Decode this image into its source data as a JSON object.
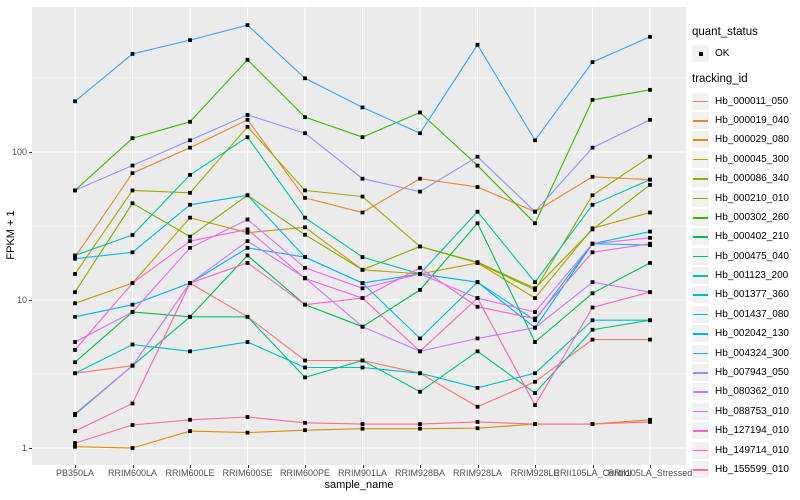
{
  "chart_data": {
    "type": "line",
    "title": "",
    "xlabel": "sample_name",
    "ylabel": "FPKM + 1",
    "y_scale": "log10",
    "grid": "on",
    "legend_position": "right",
    "y_ticks": [
      1,
      10,
      100
    ],
    "y_tick_labels": [
      "1",
      "10",
      "100"
    ],
    "y_minor_ticks": [
      3.162,
      31.62,
      316.2
    ],
    "ylim": [
      0.77,
      960
    ],
    "categories": [
      "PB350LA",
      "RRIM600LA",
      "RRIM600LE",
      "RRIM600SE",
      "RRIM600PE",
      "RRIM901LA",
      "RRIM928BA",
      "RRIM928LA",
      "RRIM928LE",
      "RRII105LA_Control",
      "RRII105LA_Stressed"
    ],
    "series": [
      {
        "name": "Hb_000011_050",
        "color": "#F8766D",
        "values": [
          3.2,
          3.6,
          13,
          7.7,
          3.9,
          3.9,
          3.2,
          1.9,
          2.8,
          5.4,
          5.4
        ]
      },
      {
        "name": "Hb_000019_040",
        "color": "#EA8331",
        "values": [
          19.5,
          72,
          107,
          165,
          49,
          39,
          66,
          58,
          39.5,
          68,
          65
        ]
      },
      {
        "name": "Hb_000029_080",
        "color": "#D89000",
        "values": [
          1.02,
          1.0,
          1.3,
          1.27,
          1.32,
          1.35,
          1.35,
          1.36,
          1.45,
          1.45,
          1.55
        ]
      },
      {
        "name": "Hb_000045_300",
        "color": "#C09B00",
        "values": [
          9.5,
          13,
          36,
          28.5,
          31,
          16,
          15,
          17.8,
          10.3,
          30.5,
          39
        ]
      },
      {
        "name": "Hb_000086_340",
        "color": "#A3A500",
        "values": [
          15,
          55,
          53,
          148,
          55,
          50,
          23,
          17.8,
          11.7,
          51,
          93
        ]
      },
      {
        "name": "Hb_000210_010",
        "color": "#7CAE00",
        "values": [
          11.3,
          45,
          26.8,
          51,
          27.6,
          16,
          23,
          18,
          12,
          30,
          60
        ]
      },
      {
        "name": "Hb_000302_260",
        "color": "#39B600",
        "values": [
          55,
          124,
          160,
          420,
          172,
          126,
          185,
          81,
          33,
          225,
          263
        ]
      },
      {
        "name": "Hb_000402_210",
        "color": "#00BB4E",
        "values": [
          3.8,
          8.3,
          7.7,
          20,
          9.3,
          6.6,
          11.7,
          33,
          5.2,
          11.1,
          17.8
        ]
      },
      {
        "name": "Hb_000475_040",
        "color": "#00BF7D",
        "values": [
          1.7,
          3.6,
          7.7,
          7.7,
          3.0,
          3.9,
          2.4,
          4.5,
          2.35,
          6.3,
          7.3
        ]
      },
      {
        "name": "Hb_001123_200",
        "color": "#00C1A3",
        "values": [
          20,
          27.5,
          70,
          126,
          36,
          19.5,
          15,
          39.5,
          13.2,
          44,
          65
        ]
      },
      {
        "name": "Hb_001377_360",
        "color": "#00BFC4",
        "values": [
          3.2,
          5.0,
          4.5,
          5.2,
          3.5,
          3.5,
          3.2,
          2.55,
          3.2,
          7.3,
          7.3
        ]
      },
      {
        "name": "Hb_001437_080",
        "color": "#00BAE0",
        "values": [
          19,
          21,
          44,
          51,
          19.5,
          13,
          5.5,
          13.2,
          7.3,
          24,
          29
        ]
      },
      {
        "name": "Hb_002042_130",
        "color": "#00B0F6",
        "values": [
          7.7,
          9.3,
          13,
          22.5,
          19.5,
          13,
          15,
          13.2,
          6.5,
          24,
          23.5
        ]
      },
      {
        "name": "Hb_004324_300",
        "color": "#35A2FF",
        "values": [
          220,
          460,
          570,
          720,
          315,
          200,
          134,
          530,
          120,
          405,
          600
        ]
      },
      {
        "name": "Hb_007943_050",
        "color": "#9590FF",
        "values": [
          55,
          81,
          120,
          178,
          134,
          66,
          54,
          93,
          39.5,
          107,
          165
        ]
      },
      {
        "name": "Hb_080362_010",
        "color": "#C77CFF",
        "values": [
          1.67,
          3.6,
          13,
          25,
          14.1,
          6.6,
          4.5,
          5.5,
          6.5,
          13.2,
          11.3
        ]
      },
      {
        "name": "Hb_088753_010",
        "color": "#E76BF3",
        "values": [
          5.2,
          8.3,
          22.5,
          35,
          16.5,
          12,
          15,
          10.3,
          8.3,
          24,
          26.3
        ]
      },
      {
        "name": "Hb_127194_010",
        "color": "#FA62DB",
        "values": [
          4.6,
          13,
          25,
          30,
          14,
          10.3,
          16.5,
          9,
          7.5,
          21,
          24
        ]
      },
      {
        "name": "Hb_149714_010",
        "color": "#FF62BC",
        "values": [
          1.3,
          2.0,
          13,
          17.8,
          9.3,
          10.3,
          4.5,
          10.3,
          1.95,
          8.9,
          11.3
        ]
      },
      {
        "name": "Hb_155599_010",
        "color": "#FF6A98",
        "values": [
          1.08,
          1.43,
          1.55,
          1.62,
          1.48,
          1.45,
          1.45,
          1.5,
          1.45,
          1.45,
          1.5
        ]
      }
    ]
  },
  "legend": {
    "quant_status_title": "quant_status",
    "quant_ok_label": "OK",
    "tracking_title": "tracking_id"
  },
  "colors": {
    "panel_bg": "#EBEBEB",
    "grid_major": "#FFFFFF",
    "grid_minor": "#FFFFFF",
    "marker": "#000000",
    "tick_text": "#4D4D4D",
    "legend_key_bg": "#F2F2F2"
  }
}
